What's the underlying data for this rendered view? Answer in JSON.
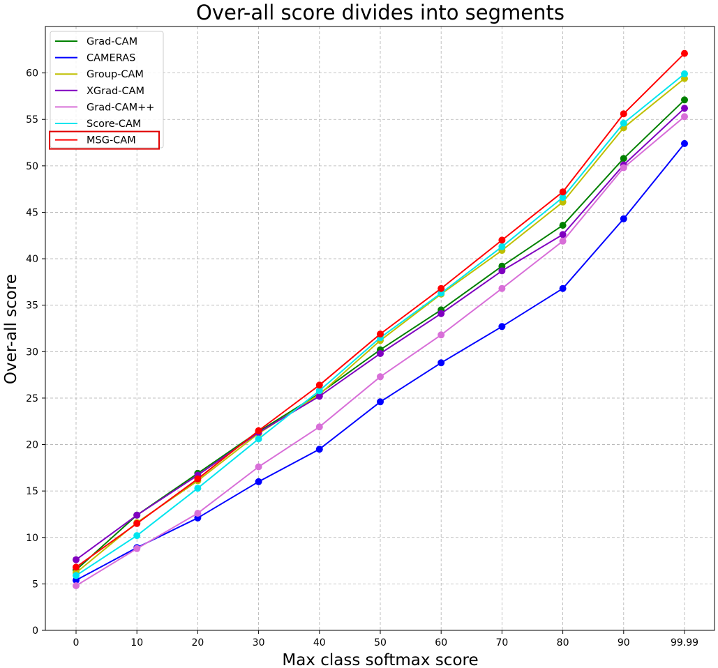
{
  "chart_data": {
    "type": "line",
    "title": "Over-all score divides into segments",
    "xlabel": "Max class softmax score",
    "ylabel": "Over-all score",
    "categories": [
      "0",
      "10",
      "20",
      "30",
      "40",
      "50",
      "60",
      "70",
      "80",
      "90",
      "99.99"
    ],
    "yticks": [
      0,
      5,
      10,
      15,
      20,
      25,
      30,
      35,
      40,
      45,
      50,
      55,
      60
    ],
    "ylim": [
      0,
      65
    ],
    "grid": true,
    "legend_position": "top-left",
    "highlighted_legend_entry": "MSG-CAM",
    "series": [
      {
        "name": "Grad-CAM",
        "color": "#008000",
        "values": [
          6.5,
          12.4,
          16.9,
          21.4,
          25.5,
          30.2,
          34.5,
          39.2,
          43.6,
          50.8,
          57.1
        ]
      },
      {
        "name": "CAMERAS",
        "color": "#0000ff",
        "values": [
          5.4,
          8.9,
          12.1,
          16.0,
          19.5,
          24.6,
          28.8,
          32.7,
          36.8,
          44.3,
          52.4
        ]
      },
      {
        "name": "Group-CAM",
        "color": "#bfbf00",
        "values": [
          6.2,
          11.6,
          16.1,
          21.2,
          25.4,
          31.2,
          36.2,
          40.9,
          46.1,
          54.1,
          59.4
        ]
      },
      {
        "name": "XGrad-CAM",
        "color": "#8000c0",
        "values": [
          7.6,
          12.4,
          16.7,
          21.3,
          25.2,
          29.8,
          34.1,
          38.7,
          42.6,
          50.1,
          56.2
        ]
      },
      {
        "name": "Grad-CAM++",
        "color": "#d86fd8",
        "values": [
          4.8,
          8.8,
          12.6,
          17.6,
          21.9,
          27.3,
          31.8,
          36.8,
          41.9,
          49.8,
          55.3
        ]
      },
      {
        "name": "Score-CAM",
        "color": "#00e5ee",
        "values": [
          5.9,
          10.2,
          15.3,
          20.6,
          25.8,
          31.5,
          36.3,
          41.3,
          46.6,
          54.6,
          59.9
        ]
      },
      {
        "name": "MSG-CAM",
        "color": "#ff0000",
        "values": [
          6.8,
          11.5,
          16.3,
          21.5,
          26.4,
          31.9,
          36.8,
          42.0,
          47.2,
          55.6,
          62.1
        ]
      }
    ]
  }
}
